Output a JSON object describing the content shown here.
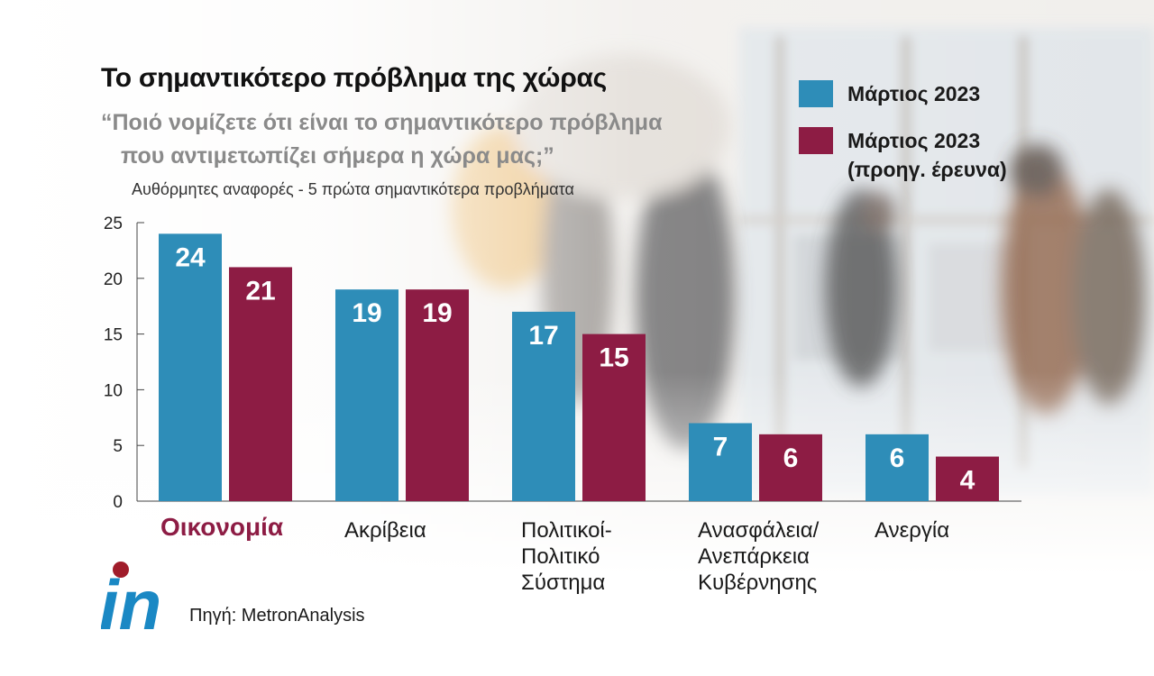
{
  "title": "Το σημαντικότερο πρόβλημα της χώρας",
  "question_line1": "“Ποιό νομίζετε ότι είναι το σημαντικότερο πρόβλημα",
  "question_line2": "που αντιμετωπίζει σήμερα η χώρα μας;”",
  "subtitle": "Αυθόρμητες αναφορές - 5 πρώτα σημαντικότερα προβλήματα",
  "legend": [
    {
      "label": "Μάρτιος 2023",
      "sub": "",
      "color": "#2e8db8"
    },
    {
      "label": "Μάρτιος 2023",
      "sub": "(προηγ. έρευνα)",
      "color": "#8d1c44"
    }
  ],
  "source": "Πηγή: MetronAnalysis",
  "logo_text": "in",
  "colors": {
    "series1": "#2e8db8",
    "series2": "#8d1c44",
    "highlight_label": "#8d1c44",
    "logo_blue": "#1a88c4",
    "logo_dot": "#a01c2a"
  },
  "chart_data": {
    "type": "bar",
    "categories": [
      "Οικονομία",
      "Ακρίβεια",
      "Πολιτικοί-\nΠολιτικό\nΣύστημα",
      "Ανασφάλεια/\nΑνεπάρκεια\nΚυβέρνησης",
      "Ανεργία"
    ],
    "highlighted_category": 0,
    "series": [
      {
        "name": "Μάρτιος 2023",
        "values": [
          24,
          19,
          17,
          7,
          6
        ]
      },
      {
        "name": "Μάρτιος 2023 (προηγ. έρευνα)",
        "values": [
          21,
          19,
          15,
          6,
          4
        ]
      }
    ],
    "yticks": [
      0,
      5,
      10,
      15,
      20,
      25
    ],
    "ylim": [
      0,
      25
    ],
    "data_labels": true,
    "legend_position": "top-right",
    "grid": false
  }
}
